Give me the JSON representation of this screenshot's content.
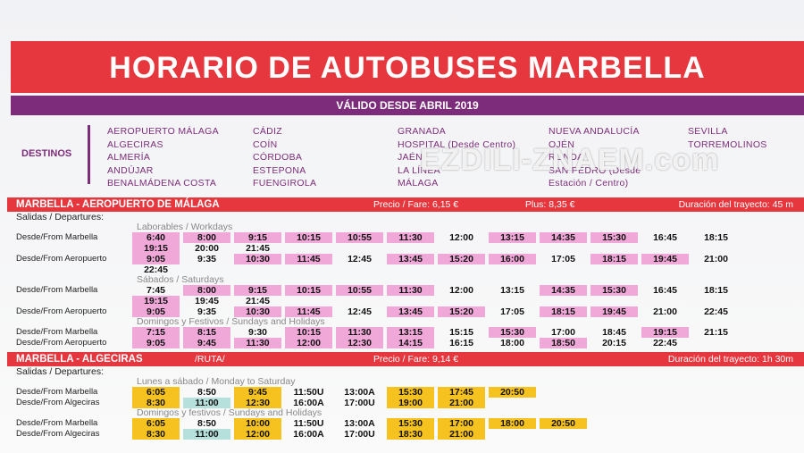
{
  "header": {
    "title": "HORARIO DE AUTOBUSES MARBELLA",
    "subtitle": "VÁLIDO DESDE ABRIL 2019"
  },
  "destinations": {
    "label": "DESTINOS",
    "columns": [
      [
        "AEROPUERTO MÁLAGA",
        "ALGECIRAS",
        "ALMERÍA",
        "ANDÚJAR",
        "BENALMÁDENA COSTA"
      ],
      [
        "CÁDIZ",
        "COÍN",
        "CÓRDOBA",
        "ESTEPONA",
        "FUENGIROLA"
      ],
      [
        "GRANADA",
        "HOSPITAL (Desde Centro)",
        "JAÉN",
        "LA LÍNEA",
        "MÁLAGA"
      ],
      [
        "NUEVA ANDALUCÍA",
        "OJÉN",
        "RONDA",
        "SAN PEDRO (Desde",
        "Estación / Centro)"
      ],
      [
        "SEVILLA",
        "TORREMOLINOS"
      ]
    ]
  },
  "routes": [
    {
      "title": "MARBELLA - AEROPUERTO DE MÁLAGA",
      "fare": "Precio / Fare: 6,15 €",
      "plus": "Plus: 8,35 €",
      "duration": "Duración del trayecto: 45 m",
      "departures_label": "Salidas / Departures:",
      "schedules": [
        {
          "label": "Laborables / Workdays",
          "rows": [
            {
              "from": "Desde/From Marbella",
              "times": [
                {
                  "time": "6:40",
                  "highlight": "pink"
                },
                {
                  "time": "8:00",
                  "highlight": "pink"
                },
                {
                  "time": "9:15",
                  "highlight": "pink"
                },
                {
                  "time": "10:15",
                  "highlight": "pink"
                },
                {
                  "time": "10:55",
                  "highlight": "pink"
                },
                {
                  "time": "11:30",
                  "highlight": "pink"
                },
                {
                  "time": "12:00"
                },
                {
                  "time": "13:15",
                  "highlight": "pink"
                },
                {
                  "time": "14:35",
                  "highlight": "pink"
                },
                {
                  "time": "15:30",
                  "highlight": "pink"
                },
                {
                  "time": "16:45"
                },
                {
                  "time": "18:15"
                },
                {
                  "time": "19:15",
                  "highlight": "pink"
                },
                {
                  "time": "20:00"
                },
                {
                  "time": "21:45"
                }
              ]
            },
            {
              "from": "Desde/From Aeropuerto",
              "times": [
                {
                  "time": "9:05",
                  "highlight": "pink"
                },
                {
                  "time": "9:35"
                },
                {
                  "time": "10:30",
                  "highlight": "pink"
                },
                {
                  "time": "11:45",
                  "highlight": "pink"
                },
                {
                  "time": "12:45"
                },
                {
                  "time": "13:45",
                  "highlight": "pink"
                },
                {
                  "time": "15:20",
                  "highlight": "pink"
                },
                {
                  "time": "16:00",
                  "highlight": "pink"
                },
                {
                  "time": "17:05"
                },
                {
                  "time": "18:15",
                  "highlight": "pink"
                },
                {
                  "time": "19:45",
                  "highlight": "pink"
                },
                {
                  "time": "21:00"
                },
                {
                  "time": "22:45"
                }
              ]
            }
          ]
        },
        {
          "label": "Sábados / Saturdays",
          "rows": [
            {
              "from": "Desde/From Marbella",
              "times": [
                {
                  "time": "7:45"
                },
                {
                  "time": "8:00",
                  "highlight": "pink"
                },
                {
                  "time": "9:15",
                  "highlight": "pink"
                },
                {
                  "time": "10:15",
                  "highlight": "pink"
                },
                {
                  "time": "10:55",
                  "highlight": "pink"
                },
                {
                  "time": "11:30",
                  "highlight": "pink"
                },
                {
                  "time": "12:00"
                },
                {
                  "time": "13:15"
                },
                {
                  "time": "14:35",
                  "highlight": "pink"
                },
                {
                  "time": "15:30",
                  "highlight": "pink"
                },
                {
                  "time": "16:45"
                },
                {
                  "time": "18:15"
                },
                {
                  "time": "19:15",
                  "highlight": "pink"
                },
                {
                  "time": "19:45"
                },
                {
                  "time": "21:45"
                }
              ]
            },
            {
              "from": "Desde/From Aeropuerto",
              "times": [
                {
                  "time": "9:05",
                  "highlight": "pink"
                },
                {
                  "time": "9:35"
                },
                {
                  "time": "10:30",
                  "highlight": "pink"
                },
                {
                  "time": "11:45",
                  "highlight": "pink"
                },
                {
                  "time": "12:45"
                },
                {
                  "time": "13:45",
                  "highlight": "pink"
                },
                {
                  "time": "15:20",
                  "highlight": "pink"
                },
                {
                  "time": "17:05"
                },
                {
                  "time": "18:15",
                  "highlight": "pink"
                },
                {
                  "time": "19:45",
                  "highlight": "pink"
                },
                {
                  "time": "21:00"
                },
                {
                  "time": "22:45"
                }
              ]
            }
          ]
        },
        {
          "label": "Domingos y Festivos / Sundays and Holidays",
          "rows": [
            {
              "from": "Desde/From Marbella",
              "times": [
                {
                  "time": "7:15",
                  "highlight": "pink"
                },
                {
                  "time": "8:15",
                  "highlight": "pink"
                },
                {
                  "time": "9:30"
                },
                {
                  "time": "10:15",
                  "highlight": "pink"
                },
                {
                  "time": "11:30",
                  "highlight": "pink"
                },
                {
                  "time": "13:15",
                  "highlight": "pink"
                },
                {
                  "time": "15:15"
                },
                {
                  "time": "15:30",
                  "highlight": "pink"
                },
                {
                  "time": "17:00"
                },
                {
                  "time": "18:45"
                },
                {
                  "time": "19:15",
                  "highlight": "pink"
                },
                {
                  "time": "21:15"
                }
              ]
            },
            {
              "from": "Desde/From Aeropuerto",
              "times": [
                {
                  "time": "9:05",
                  "highlight": "pink"
                },
                {
                  "time": "9:45",
                  "highlight": "pink"
                },
                {
                  "time": "11:30",
                  "highlight": "pink"
                },
                {
                  "time": "12:00",
                  "highlight": "pink"
                },
                {
                  "time": "12:30",
                  "highlight": "pink"
                },
                {
                  "time": "14:15",
                  "highlight": "pink"
                },
                {
                  "time": "16:15"
                },
                {
                  "time": "18:00"
                },
                {
                  "time": "18:50",
                  "highlight": "pink"
                },
                {
                  "time": "20:15"
                },
                {
                  "time": "22:45"
                }
              ]
            }
          ]
        }
      ]
    },
    {
      "title": "MARBELLA - ALGECIRAS",
      "note": "/RUTA/",
      "fare": "Precio / Fare: 9,14 €",
      "duration": "Duración del trayecto: 1h 30m",
      "departures_label": "Salidas / Departures:",
      "schedules": [
        {
          "label": "Lunes a sábado / Monday to Saturday",
          "rows": [
            {
              "from": "Desde/From Marbella",
              "times": [
                {
                  "time": "6:05",
                  "highlight": "yellow"
                },
                {
                  "time": "8:50"
                },
                {
                  "time": "9:45",
                  "highlight": "yellow"
                },
                {
                  "time": "11:50U"
                },
                {
                  "time": "13:00A"
                },
                {
                  "time": "15:30",
                  "highlight": "yellow"
                },
                {
                  "time": "17:45",
                  "highlight": "yellow"
                },
                {
                  "time": "20:50",
                  "highlight": "yellow"
                }
              ]
            },
            {
              "from": "Desde/From Algeciras",
              "times": [
                {
                  "time": "8:30",
                  "highlight": "yellow"
                },
                {
                  "time": "11:00",
                  "highlight": "teal"
                },
                {
                  "time": "12:30",
                  "highlight": "yellow"
                },
                {
                  "time": "16:00A"
                },
                {
                  "time": "17:00U"
                },
                {
                  "time": "19:00",
                  "highlight": "yellow"
                },
                {
                  "time": "21:00",
                  "highlight": "yellow"
                }
              ]
            }
          ]
        },
        {
          "label": "Domingos y festivos / Sundays and Holidays",
          "rows": [
            {
              "from": "Desde/From Marbella",
              "times": [
                {
                  "time": "6:05",
                  "highlight": "yellow"
                },
                {
                  "time": "8:50"
                },
                {
                  "time": "10:00",
                  "highlight": "yellow"
                },
                {
                  "time": "11:50U"
                },
                {
                  "time": "13:00A"
                },
                {
                  "time": "15:30",
                  "highlight": "yellow"
                },
                {
                  "time": "17:00",
                  "highlight": "yellow"
                },
                {
                  "time": "18:00",
                  "highlight": "yellow"
                },
                {
                  "time": "20:50",
                  "highlight": "yellow"
                }
              ]
            },
            {
              "from": "Desde/From Algeciras",
              "times": [
                {
                  "time": "8:30",
                  "highlight": "yellow"
                },
                {
                  "time": "11:00",
                  "highlight": "teal"
                },
                {
                  "time": "12:00",
                  "highlight": "yellow"
                },
                {
                  "time": "16:00A"
                },
                {
                  "time": "17:00U"
                },
                {
                  "time": "18:30",
                  "highlight": "yellow"
                },
                {
                  "time": "21:00",
                  "highlight": "yellow"
                }
              ]
            }
          ]
        }
      ]
    }
  ],
  "watermark": "EZDILI-ZNAEM.com"
}
